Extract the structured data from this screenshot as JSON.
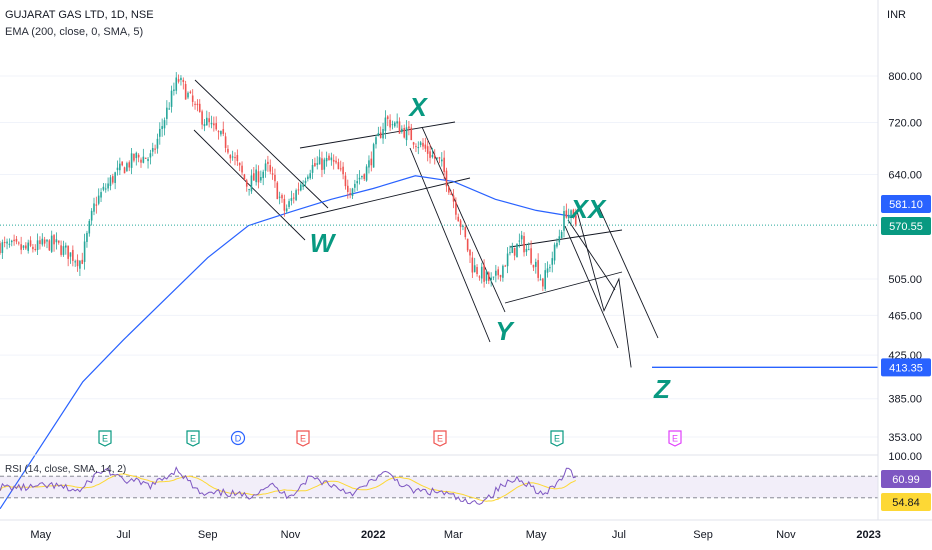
{
  "header": {
    "title": "GUJARAT GAS LTD, 1D, NSE",
    "indicator": "EMA (200, close, 0, SMA, 5)",
    "currency": "INR"
  },
  "rsi_panel": {
    "label": "RSI (14, close, SMA, 14, 2)",
    "value_label": "60.99",
    "ma_label": "54.84",
    "upper_band": 70,
    "lower_band": 30
  },
  "colors": {
    "up": "#26a69a",
    "down": "#ef5350",
    "ema": "#2962ff",
    "wave_label": "#089981",
    "rsi": "#7e57c2",
    "rsi_ma": "#fdd835",
    "price_tag_blue": "#2962ff",
    "price_tag_teal": "#089981",
    "target_line": "#2962ff"
  },
  "chart_data": {
    "type": "candlestick",
    "symbol": "GUJARAT GAS LTD",
    "interval": "1D",
    "exchange": "NSE",
    "y_scale": "log",
    "y_ticks": [
      353,
      385,
      425,
      465,
      505,
      640,
      720,
      800
    ],
    "x_ticks": [
      "May",
      "Jul",
      "Sep",
      "Nov",
      "2022",
      "Mar",
      "May",
      "Jul",
      "Sep",
      "Nov",
      "2023"
    ],
    "last_price": 570.55,
    "ema_value": 581.1,
    "target_price": 413.35,
    "wave_labels": [
      "W",
      "X",
      "Y",
      "XX",
      "Z"
    ],
    "event_markers": [
      {
        "label": "E",
        "color": "#089981"
      },
      {
        "label": "E",
        "color": "#089981"
      },
      {
        "label": "D",
        "color": "#2962ff"
      },
      {
        "label": "E",
        "color": "#ef5350"
      },
      {
        "label": "E",
        "color": "#ef5350"
      },
      {
        "label": "E",
        "color": "#089981"
      },
      {
        "label": "E",
        "color": "#e040fb"
      }
    ],
    "price_path": [
      [
        "2021-04-01",
        545
      ],
      [
        "2021-04-20",
        540
      ],
      [
        "2021-05-10",
        548
      ],
      [
        "2021-05-31",
        525
      ],
      [
        "2021-06-10",
        600
      ],
      [
        "2021-06-25",
        640
      ],
      [
        "2021-07-10",
        665
      ],
      [
        "2021-07-22",
        665
      ],
      [
        "2021-08-05",
        760
      ],
      [
        "2021-08-10",
        795
      ],
      [
        "2021-08-25",
        735
      ],
      [
        "2021-09-15",
        685
      ],
      [
        "2021-09-30",
        625
      ],
      [
        "2021-10-15",
        650
      ],
      [
        "2021-10-28",
        588
      ],
      [
        "2021-11-15",
        650
      ],
      [
        "2021-12-01",
        660
      ],
      [
        "2021-12-15",
        620
      ],
      [
        "2021-12-28",
        650
      ],
      [
        "2022-01-10",
        725
      ],
      [
        "2022-01-25",
        705
      ],
      [
        "2022-02-07",
        680
      ],
      [
        "2022-02-20",
        655
      ],
      [
        "2022-03-01",
        605
      ],
      [
        "2022-03-15",
        520
      ],
      [
        "2022-03-30",
        500
      ],
      [
        "2022-04-10",
        530
      ],
      [
        "2022-04-20",
        550
      ],
      [
        "2022-04-30",
        525
      ],
      [
        "2022-05-06",
        500
      ],
      [
        "2022-05-16",
        545
      ],
      [
        "2022-05-23",
        590
      ],
      [
        "2022-05-31",
        570.55
      ]
    ],
    "ema_path": [
      [
        "2021-04-01",
        300
      ],
      [
        "2021-06-01",
        400
      ],
      [
        "2021-07-01",
        440
      ],
      [
        "2021-09-01",
        530
      ],
      [
        "2021-10-01",
        570
      ],
      [
        "2021-11-01",
        588
      ],
      [
        "2021-12-01",
        605
      ],
      [
        "2022-01-01",
        620
      ],
      [
        "2022-02-01",
        638
      ],
      [
        "2022-03-01",
        630
      ],
      [
        "2022-04-01",
        605
      ],
      [
        "2022-05-01",
        590
      ],
      [
        "2022-05-31",
        581.1
      ]
    ],
    "projection_path": [
      [
        "2022-05-31",
        590
      ],
      [
        "2022-06-20",
        470
      ],
      [
        "2022-07-01",
        505
      ],
      [
        "2022-07-10",
        413.35
      ]
    ]
  }
}
